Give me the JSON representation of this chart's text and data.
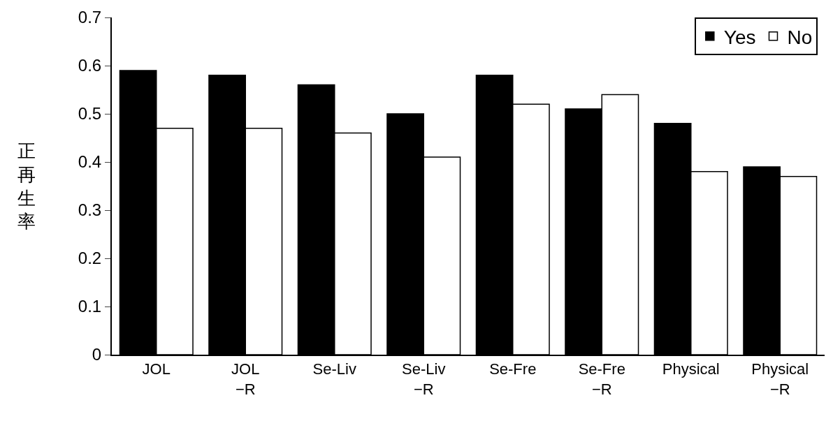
{
  "chart_data": {
    "type": "bar",
    "ylabel": "正再生率",
    "categories": [
      "JOL",
      "JOL\n−R",
      "Se-Liv",
      "Se-Liv\n−R",
      "Se-Fre",
      "Se-Fre\n−R",
      "Physical",
      "Physical\n−R"
    ],
    "series": [
      {
        "name": "Yes",
        "color": "#000000",
        "values": [
          0.59,
          0.58,
          0.56,
          0.5,
          0.58,
          0.51,
          0.48,
          0.39
        ]
      },
      {
        "name": "No",
        "color": "#ffffff",
        "values": [
          0.47,
          0.47,
          0.46,
          0.41,
          0.52,
          0.54,
          0.38,
          0.37
        ]
      }
    ],
    "ylim": [
      0,
      0.7
    ],
    "yticks": [
      0,
      0.1,
      0.2,
      0.3,
      0.4,
      0.5,
      0.6,
      0.7
    ],
    "legend": "top right"
  }
}
